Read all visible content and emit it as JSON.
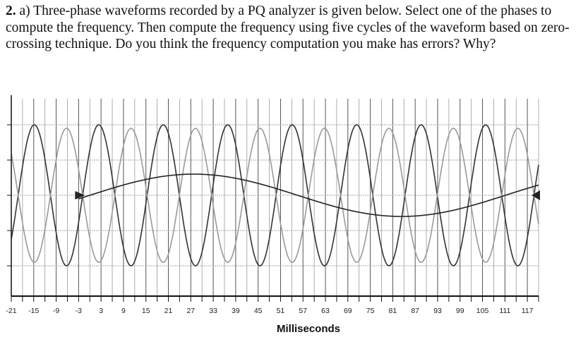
{
  "question": {
    "number": "2.",
    "text": "a) Three-phase waveforms recorded by a PQ analyzer is given below. Select one of the phases to compute the frequency. Then compute the frequency using five cycles of the waveform based on zero-crossing technique. Do you think the frequency computation you make has errors? Why?"
  },
  "chart_data": {
    "type": "line",
    "title": "",
    "xlabel": "Milliseconds",
    "ylabel": "",
    "xlim": [
      -21,
      120
    ],
    "ylim": [
      -1.2,
      1.6
    ],
    "x_tick_labels": [
      "-21",
      "-15",
      "-9",
      "-3",
      "3",
      "9",
      "15",
      "21",
      "27",
      "33",
      "39",
      "45",
      "51",
      "57",
      "63",
      "69",
      "75",
      "81",
      "87",
      "93",
      "99",
      "105",
      "111",
      "117"
    ],
    "x_tick_values": [
      -21,
      -15,
      -9,
      -3,
      3,
      9,
      15,
      21,
      27,
      33,
      39,
      45,
      51,
      57,
      63,
      69,
      75,
      81,
      87,
      93,
      99,
      105,
      111,
      117
    ],
    "grid": true,
    "vertical_grid_step_ms": 3,
    "horizontal_grid_levels": [
      -1,
      -0.5,
      0,
      0.5,
      1
    ],
    "series": [
      {
        "form": "sinusoid",
        "frequency_hz": 58,
        "amplitude": 1.0,
        "phase_deg": 40,
        "color": "#333333"
      },
      {
        "form": "sinusoid",
        "frequency_hz": 58,
        "amplitude": 0.95,
        "phase_deg": 220,
        "color": "#9a9a9a"
      },
      {
        "form": "sinusoid",
        "frequency_hz": 9,
        "amplitude": 0.3,
        "phase_deg": 0,
        "color": "#222222",
        "starts_at_ms": -3
      }
    ],
    "colors": {
      "axis": "#111111",
      "grid": "#9a9a9a"
    }
  }
}
